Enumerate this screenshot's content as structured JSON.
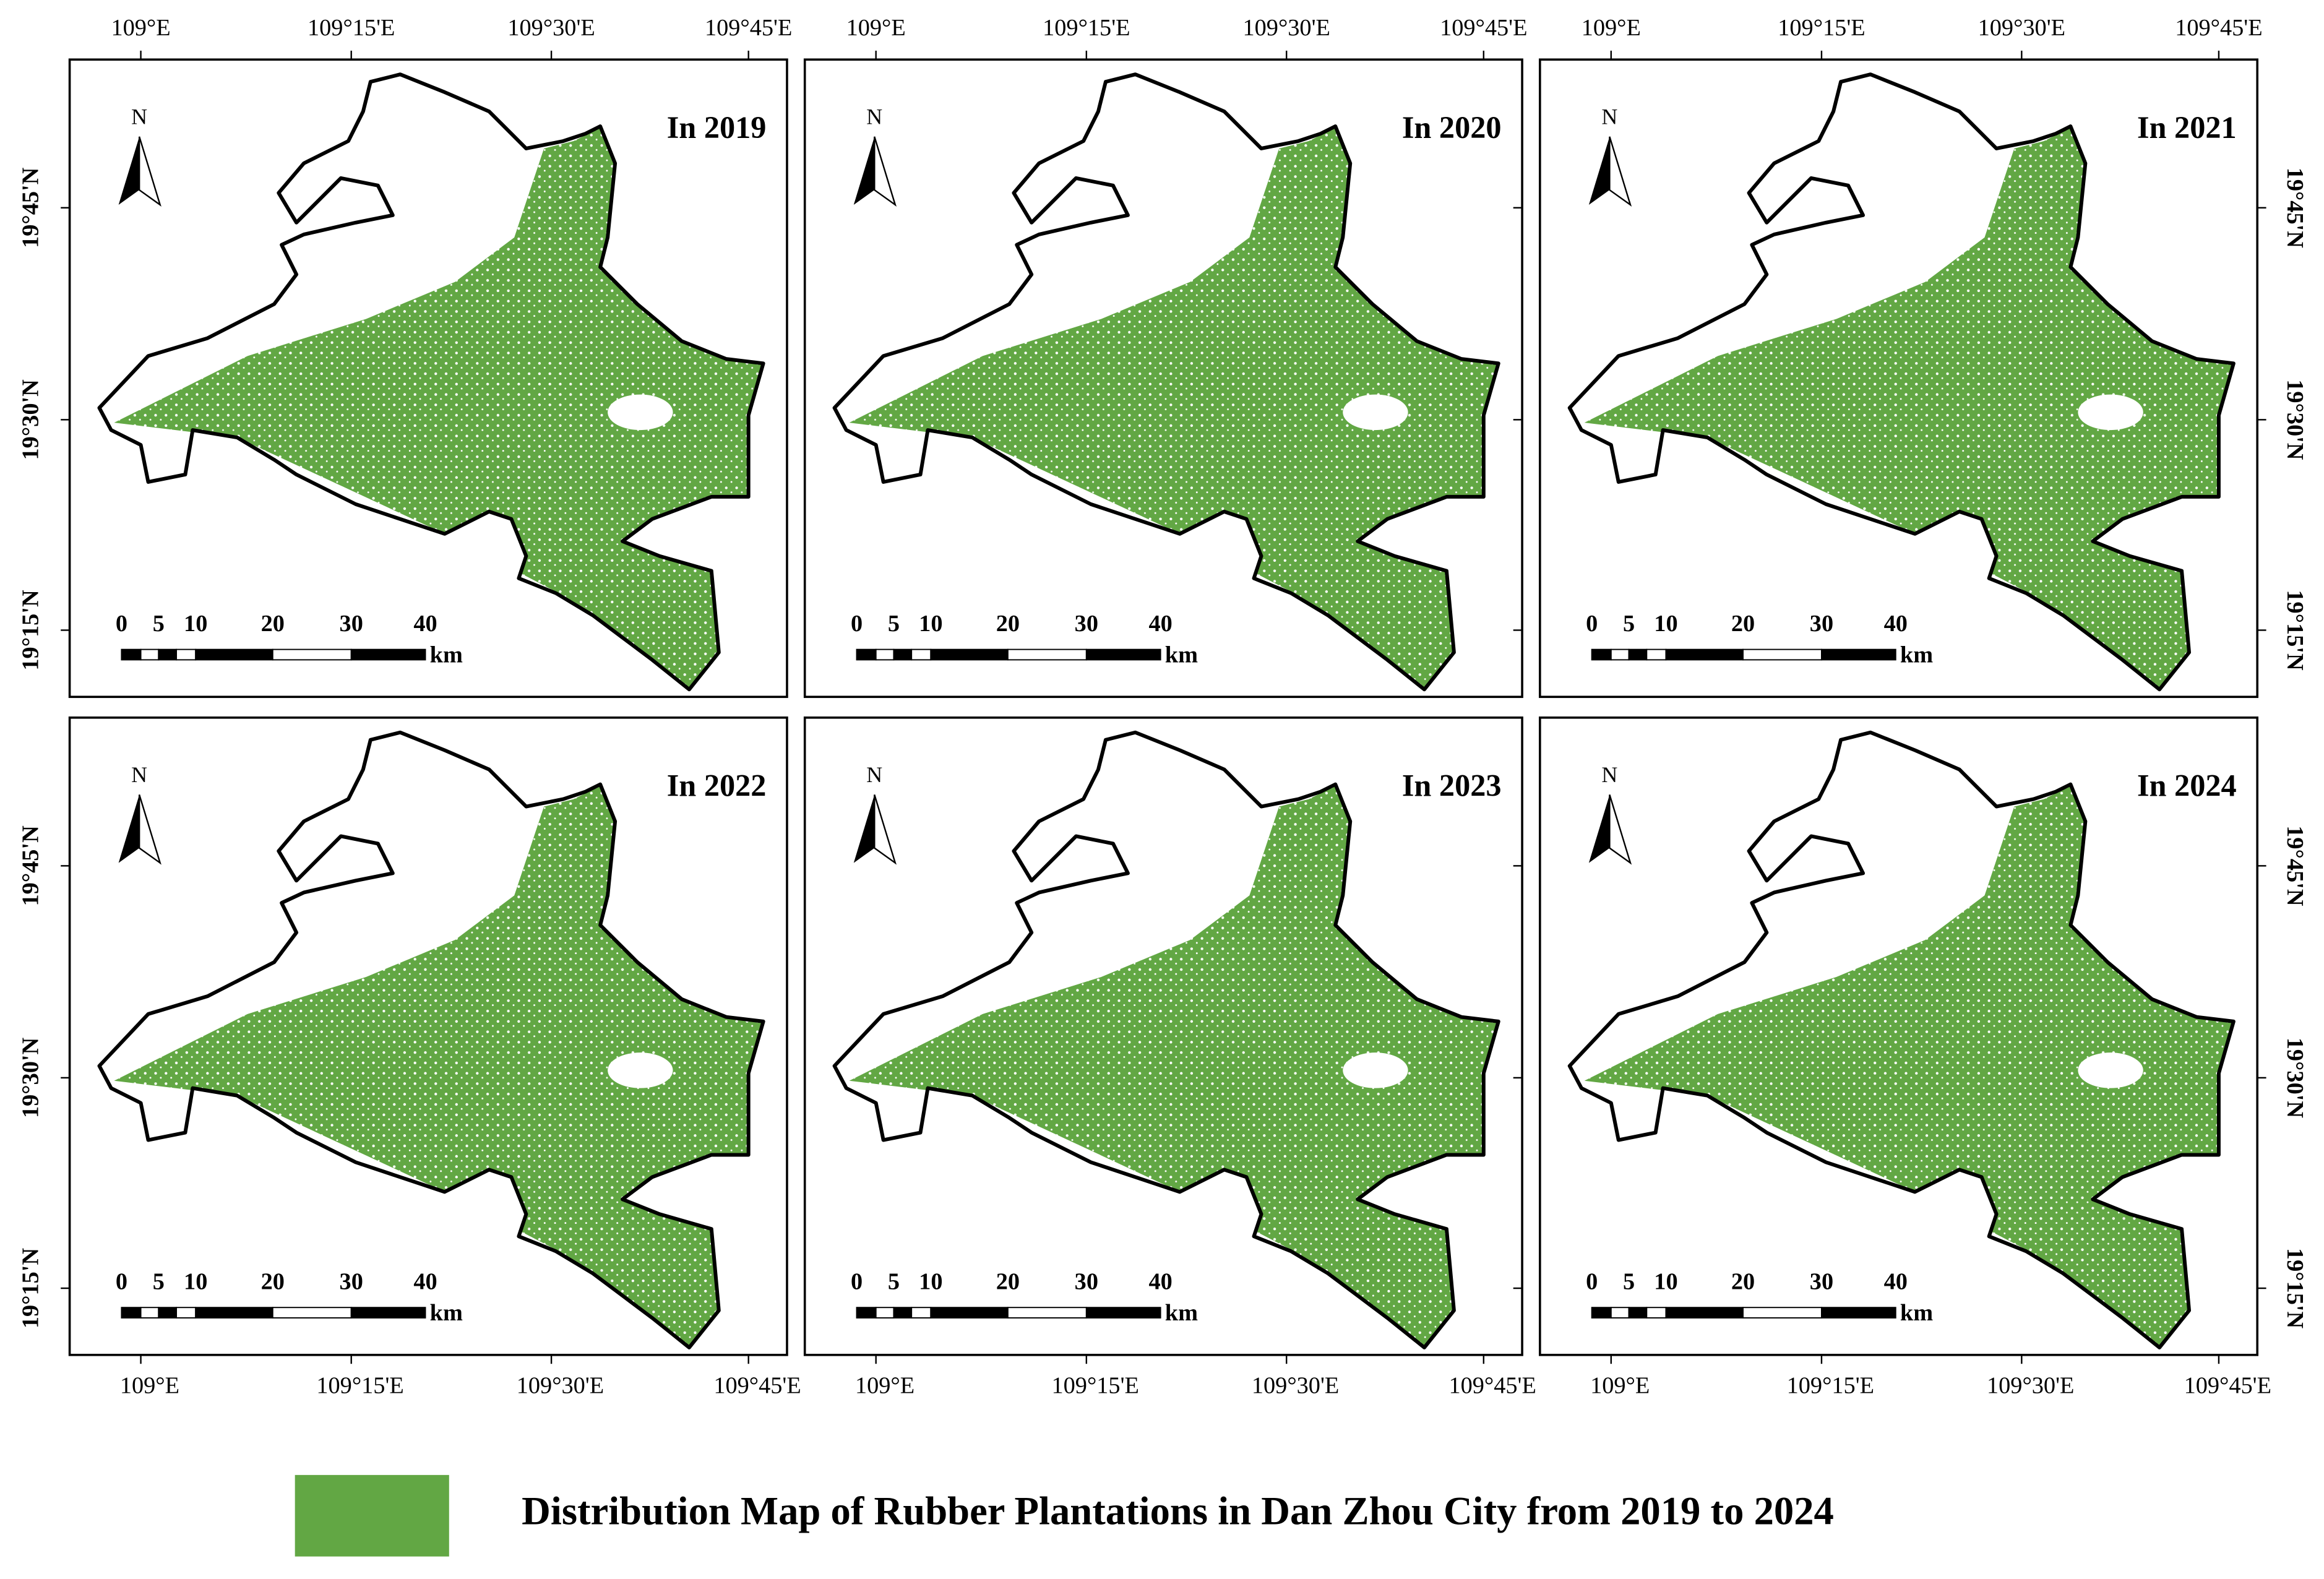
{
  "panels": [
    {
      "title": "In 2019"
    },
    {
      "title": "In 2020"
    },
    {
      "title": "In 2021"
    },
    {
      "title": "In 2022"
    },
    {
      "title": "In 2023"
    },
    {
      "title": "In 2024"
    }
  ],
  "longitude_labels": [
    "109°E",
    "109°15'E",
    "109°30'E",
    "109°45'E"
  ],
  "latitude_labels": [
    "19°45'N",
    "19°30'N",
    "19°15'N"
  ],
  "north_label": "N",
  "scale_bar": {
    "labels": [
      "0",
      "5",
      "10",
      "20",
      "30",
      "40"
    ],
    "unit": "km"
  },
  "legend": {
    "label": "Distribution Map of Rubber Plantations in Dan Zhou City from 2019 to 2024"
  }
}
